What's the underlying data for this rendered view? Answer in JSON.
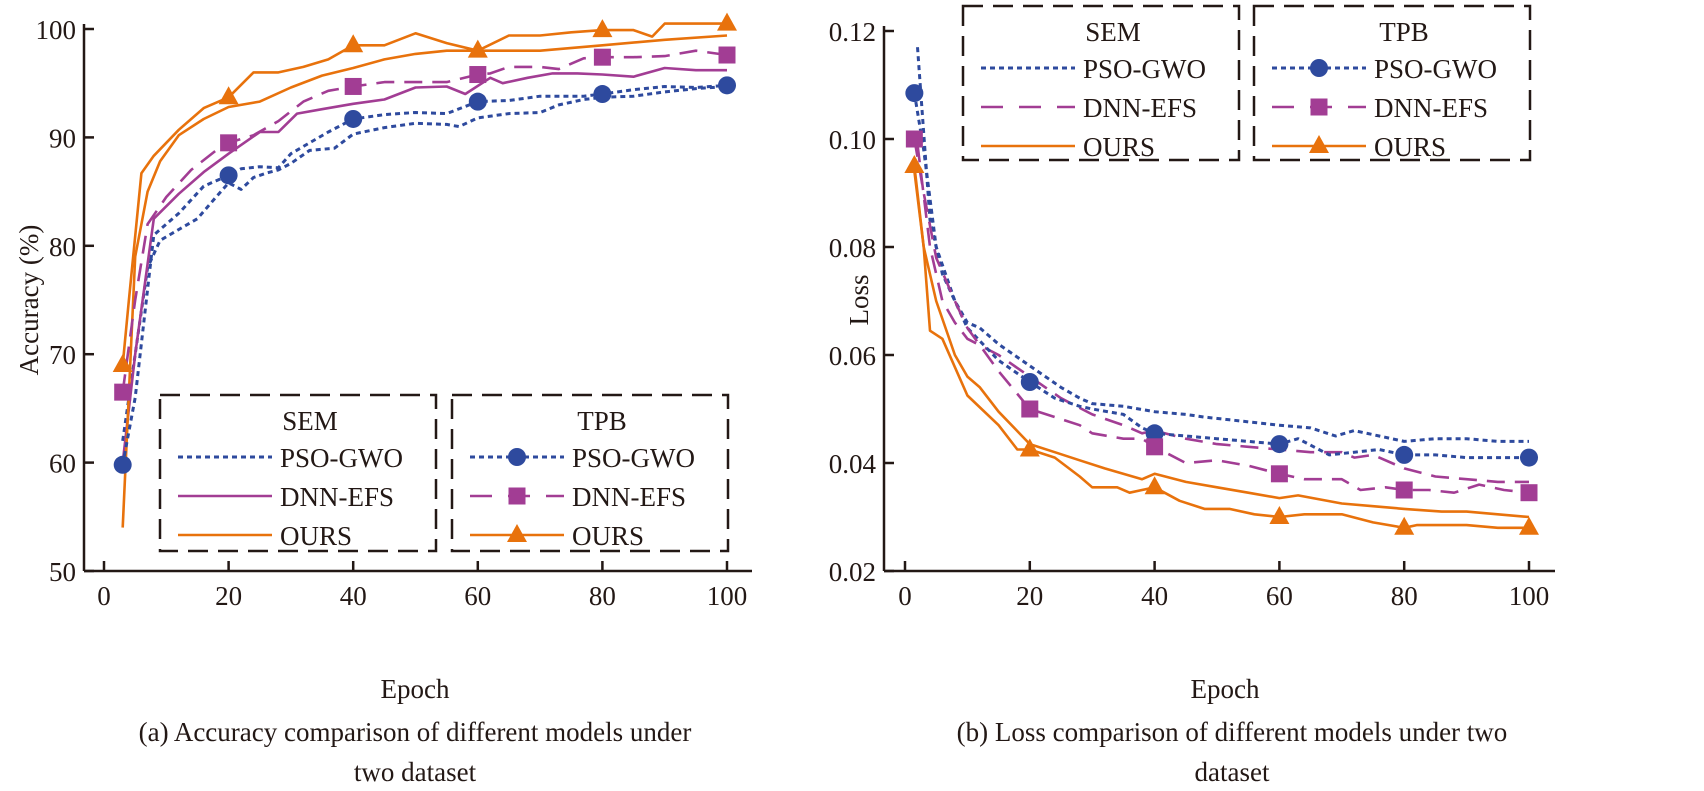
{
  "colors": {
    "pso_gwo": "#2e4a9e",
    "dnn_efs": "#a23d94",
    "ours": "#e8720c",
    "axis": "#231815"
  },
  "chart_data": [
    {
      "id": "accuracy",
      "type": "line",
      "caption_line1": "(a) Accuracy comparison of different models under",
      "caption_line2": "two dataset",
      "xlabel": "Epoch",
      "ylabel": "Accuracy (%)",
      "xlim": [
        -3,
        105
      ],
      "ylim": [
        50,
        100
      ],
      "xticks": [
        0,
        20,
        40,
        60,
        80,
        100
      ],
      "yticks": [
        50,
        60,
        70,
        80,
        90,
        100
      ],
      "xtick_labels": [
        "0",
        "20",
        "40",
        "60",
        "80",
        "100"
      ],
      "ytick_labels": [
        "50",
        "60",
        "70",
        "80",
        "90",
        "100"
      ],
      "grid": false,
      "legends": [
        {
          "title": "SEM",
          "placement": "bottom-center-left",
          "entries": [
            "PSO-GWO",
            "DNN-EFS",
            "OURS"
          ],
          "markers": false
        },
        {
          "title": "TPB",
          "placement": "bottom-right",
          "entries": [
            "PSO-GWO",
            "DNN-EFS",
            "OURS"
          ],
          "markers": true
        }
      ],
      "series": [
        {
          "name": "PSO-GWO",
          "dataset": "SEM",
          "style": "dotted",
          "color_key": "pso_gwo",
          "marker": "none",
          "x": [
            3,
            5,
            7,
            9,
            12,
            15,
            18,
            20,
            22,
            24,
            26,
            28,
            30,
            33,
            37,
            40,
            45,
            50,
            55,
            57,
            60,
            65,
            70,
            73,
            77,
            80,
            85,
            90,
            95,
            100
          ],
          "y": [
            62,
            70,
            78,
            80.5,
            81.5,
            82.5,
            84.5,
            85.8,
            85.2,
            86.3,
            86.7,
            87,
            87.6,
            88.8,
            89,
            90.3,
            90.9,
            91.3,
            91.2,
            91,
            91.8,
            92.2,
            92.3,
            93,
            93.5,
            93.7,
            93.8,
            94.2,
            94.5,
            94.7
          ]
        },
        {
          "name": "DNN-EFS",
          "dataset": "SEM",
          "style": "solid",
          "color_key": "dnn_efs",
          "marker": "none",
          "x": [
            3,
            5,
            8,
            12,
            16,
            20,
            25,
            28,
            31,
            35,
            40,
            45,
            50,
            55,
            58,
            62,
            64,
            68,
            72,
            76,
            80,
            85,
            90,
            95,
            100
          ],
          "y": [
            60,
            70,
            82.5,
            84.8,
            86.8,
            88.5,
            90.5,
            90.5,
            92.2,
            92.6,
            93.1,
            93.5,
            94.6,
            94.7,
            94,
            95.5,
            95,
            95.5,
            95.9,
            95.9,
            95.8,
            95.6,
            96.4,
            96.2,
            96.2
          ]
        },
        {
          "name": "OURS",
          "dataset": "SEM",
          "style": "solid",
          "color_key": "ours",
          "marker": "none",
          "x": [
            3,
            5,
            7,
            9,
            12,
            16,
            20,
            25,
            30,
            35,
            40,
            45,
            50,
            55,
            60,
            65,
            70,
            80,
            90,
            100
          ],
          "y": [
            54,
            79,
            85,
            87.8,
            90.2,
            91.7,
            92.8,
            93.3,
            94.6,
            95.7,
            96.4,
            97.2,
            97.7,
            98,
            98,
            98,
            98,
            98.5,
            99,
            99.4
          ]
        },
        {
          "name": "PSO-GWO",
          "dataset": "TPB",
          "style": "dotted",
          "color_key": "pso_gwo",
          "marker": "circle",
          "x": [
            3,
            5,
            8,
            12,
            16,
            20,
            22,
            25,
            28,
            30,
            33,
            36,
            40,
            45,
            50,
            55,
            60,
            65,
            70,
            73,
            77,
            80,
            85,
            90,
            95,
            100
          ],
          "y": [
            59.8,
            66,
            81,
            83,
            85.5,
            86.5,
            87.1,
            87.3,
            87.2,
            88.5,
            89.5,
            90.5,
            91.7,
            92.1,
            92.3,
            92.2,
            93.3,
            93.4,
            93.8,
            93.8,
            93.8,
            94,
            94.4,
            94.7,
            94.6,
            94.8
          ]
        },
        {
          "name": "DNN-EFS",
          "dataset": "TPB",
          "style": "dashed",
          "color_key": "dnn_efs",
          "marker": "square",
          "x": [
            3,
            5,
            7,
            10,
            14,
            18,
            20,
            24,
            28,
            32,
            36,
            40,
            45,
            50,
            55,
            60,
            62,
            65,
            70,
            73,
            77,
            80,
            85,
            90,
            95,
            100
          ],
          "y": [
            66.5,
            75,
            82,
            84.5,
            87,
            88.8,
            89.5,
            90.2,
            91.5,
            93.3,
            94.3,
            94.7,
            95.1,
            95.1,
            95.1,
            95.8,
            95.9,
            96.5,
            96.5,
            96.3,
            97.3,
            97.4,
            97.4,
            97.5,
            98,
            97.6
          ]
        },
        {
          "name": "OURS",
          "dataset": "TPB",
          "style": "solid",
          "color_key": "ours",
          "marker": "triangle",
          "x": [
            3,
            4,
            6,
            8,
            12,
            16,
            20,
            24,
            28,
            32,
            36,
            40,
            45,
            50,
            55,
            60,
            65,
            70,
            75,
            80,
            85,
            88,
            90,
            95,
            100
          ],
          "y": [
            69,
            75,
            86.7,
            88.3,
            90.7,
            92.7,
            93.7,
            96,
            96,
            96.5,
            97.2,
            98.5,
            98.5,
            99.6,
            98.7,
            98,
            99.4,
            99.4,
            99.7,
            99.9,
            99.9,
            99.3,
            100.5,
            100.5,
            100.5
          ]
        }
      ]
    },
    {
      "id": "loss",
      "type": "line",
      "caption_line1": "(b) Loss comparison of different models under two",
      "caption_line2": "dataset",
      "xlabel": "Epoch",
      "ylabel": "Loss",
      "xlim": [
        -3,
        105
      ],
      "ylim": [
        0.02,
        0.12
      ],
      "xticks": [
        0,
        20,
        40,
        60,
        80,
        100
      ],
      "yticks": [
        0.02,
        0.04,
        0.06,
        0.08,
        0.1,
        0.12
      ],
      "xtick_labels": [
        "0",
        "20",
        "40",
        "60",
        "80",
        "100"
      ],
      "ytick_labels": [
        "0.02",
        "0.04",
        "0.06",
        "0.08",
        "0.10",
        "0.12"
      ],
      "grid": false,
      "legends": [
        {
          "title": "SEM",
          "placement": "top-center",
          "entries": [
            "PSO-GWO",
            "DNN-EFS",
            "OURS"
          ],
          "markers": false
        },
        {
          "title": "TPB",
          "placement": "top-right",
          "entries": [
            "PSO-GWO",
            "DNN-EFS",
            "OURS"
          ],
          "markers": true
        }
      ],
      "series": [
        {
          "name": "PSO-GWO",
          "dataset": "SEM",
          "style": "dotted",
          "color_key": "pso_gwo",
          "marker": "none",
          "x": [
            2,
            4,
            6,
            8,
            10,
            12,
            15,
            20,
            25,
            28,
            30,
            35,
            40,
            45,
            48,
            52,
            56,
            60,
            65,
            69,
            72,
            76,
            80,
            85,
            90,
            95,
            100
          ],
          "y": [
            0.117,
            0.085,
            0.075,
            0.07,
            0.066,
            0.065,
            0.062,
            0.058,
            0.054,
            0.052,
            0.051,
            0.0505,
            0.0495,
            0.049,
            0.0485,
            0.048,
            0.0475,
            0.047,
            0.0465,
            0.045,
            0.046,
            0.045,
            0.044,
            0.0445,
            0.0445,
            0.044,
            0.044
          ]
        },
        {
          "name": "DNN-EFS",
          "dataset": "SEM",
          "style": "dashed",
          "color_key": "dnn_efs",
          "marker": "none",
          "x": [
            2,
            4,
            6,
            8,
            10,
            15,
            20,
            25,
            30,
            35,
            38,
            40,
            45,
            50,
            55,
            60,
            65,
            70,
            72,
            75,
            80,
            85,
            90,
            95,
            100
          ],
          "y": [
            0.099,
            0.08,
            0.07,
            0.066,
            0.063,
            0.06,
            0.056,
            0.052,
            0.049,
            0.047,
            0.0455,
            0.046,
            0.0445,
            0.0435,
            0.043,
            0.0425,
            0.042,
            0.042,
            0.041,
            0.0415,
            0.039,
            0.0375,
            0.037,
            0.0365,
            0.0365
          ]
        },
        {
          "name": "OURS",
          "dataset": "SEM",
          "style": "solid",
          "color_key": "ours",
          "marker": "none",
          "x": [
            1.5,
            3,
            5,
            8,
            10,
            12,
            15,
            20,
            24,
            28,
            32,
            38,
            40,
            45,
            50,
            55,
            60,
            63,
            70,
            75,
            80,
            86,
            90,
            95,
            100
          ],
          "y": [
            0.094,
            0.08,
            0.07,
            0.06,
            0.056,
            0.054,
            0.0495,
            0.0435,
            0.042,
            0.0405,
            0.039,
            0.037,
            0.038,
            0.0365,
            0.0355,
            0.0345,
            0.0335,
            0.034,
            0.0325,
            0.032,
            0.0315,
            0.031,
            0.031,
            0.0305,
            0.03
          ]
        },
        {
          "name": "PSO-GWO",
          "dataset": "TPB",
          "style": "dotted",
          "color_key": "pso_gwo",
          "marker": "circle",
          "x": [
            1.5,
            3,
            5,
            8,
            10,
            15,
            20,
            24,
            28,
            30,
            35,
            38,
            40,
            45,
            50,
            55,
            60,
            63,
            68,
            72,
            76,
            80,
            85,
            90,
            95,
            100
          ],
          "y": [
            0.1085,
            0.098,
            0.08,
            0.07,
            0.065,
            0.059,
            0.055,
            0.052,
            0.0505,
            0.05,
            0.049,
            0.0465,
            0.0455,
            0.045,
            0.0445,
            0.044,
            0.0435,
            0.0445,
            0.0415,
            0.042,
            0.0425,
            0.0415,
            0.0415,
            0.041,
            0.041,
            0.041
          ]
        },
        {
          "name": "DNN-EFS",
          "dataset": "TPB",
          "style": "dashed",
          "color_key": "dnn_efs",
          "marker": "square",
          "x": [
            1.5,
            3,
            5,
            8,
            10,
            15,
            20,
            24,
            28,
            30,
            35,
            38,
            40,
            45,
            50,
            55,
            60,
            64,
            70,
            73,
            77,
            80,
            84,
            88,
            92,
            96,
            100
          ],
          "y": [
            0.1,
            0.09,
            0.078,
            0.07,
            0.065,
            0.057,
            0.05,
            0.0485,
            0.047,
            0.0455,
            0.0445,
            0.0445,
            0.043,
            0.04,
            0.0405,
            0.0395,
            0.038,
            0.037,
            0.037,
            0.035,
            0.0355,
            0.035,
            0.035,
            0.0345,
            0.036,
            0.035,
            0.0345
          ]
        },
        {
          "name": "OURS",
          "dataset": "TPB",
          "style": "solid",
          "color_key": "ours",
          "marker": "triangle",
          "x": [
            1.5,
            3,
            4,
            6,
            10,
            15,
            18,
            20,
            24,
            28,
            30,
            34,
            36,
            40,
            44,
            48,
            52,
            56,
            60,
            64,
            70,
            75,
            80,
            82,
            90,
            95,
            100
          ],
          "y": [
            0.095,
            0.08,
            0.0645,
            0.063,
            0.0525,
            0.047,
            0.0425,
            0.0425,
            0.041,
            0.0375,
            0.0355,
            0.0355,
            0.0345,
            0.0355,
            0.033,
            0.0315,
            0.0315,
            0.0305,
            0.03,
            0.0305,
            0.0305,
            0.029,
            0.028,
            0.0285,
            0.0285,
            0.028,
            0.028
          ]
        }
      ]
    }
  ]
}
